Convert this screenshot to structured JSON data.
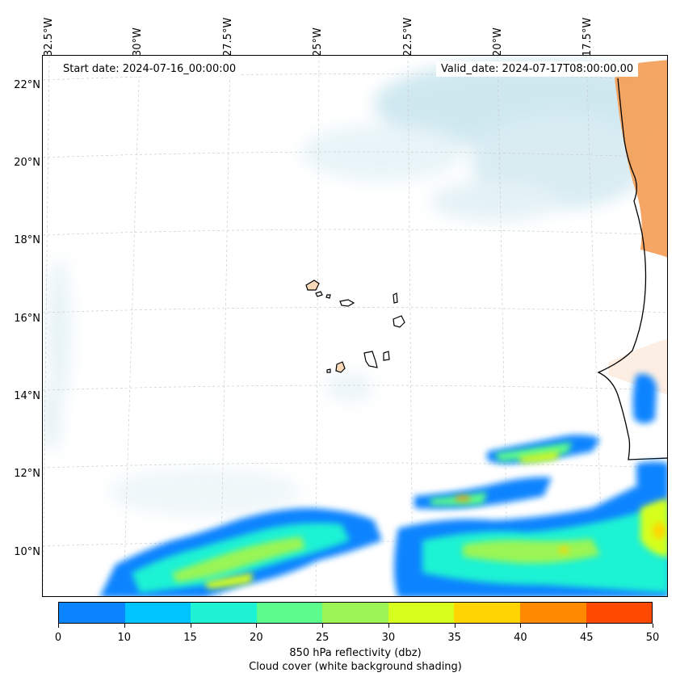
{
  "map": {
    "start_date": "Start date: 2024-07-16_00:00:00",
    "valid_date": "Valid_date: 2024-07-17T08:00:00.00",
    "longitude_labels": [
      "32.5°W",
      "30°W",
      "27.5°W",
      "25°W",
      "22.5°W",
      "20°W",
      "17.5°W"
    ],
    "latitude_labels": [
      "22°N",
      "20°N",
      "18°N",
      "16°N",
      "14°N",
      "12°N",
      "10°N"
    ]
  },
  "colorbar": {
    "ticks": [
      "0",
      "10",
      "15",
      "20",
      "25",
      "30",
      "35",
      "40",
      "45",
      "50"
    ],
    "colors": [
      "#0a84ff",
      "#00c4ff",
      "#1ef2d4",
      "#5cfc8c",
      "#9af554",
      "#d6ff1e",
      "#ffd400",
      "#ff8a00",
      "#ff4a00"
    ],
    "label_line1": "850 hPa reflectivity (dbz)",
    "label_line2": "Cloud cover (white background shading)"
  }
}
